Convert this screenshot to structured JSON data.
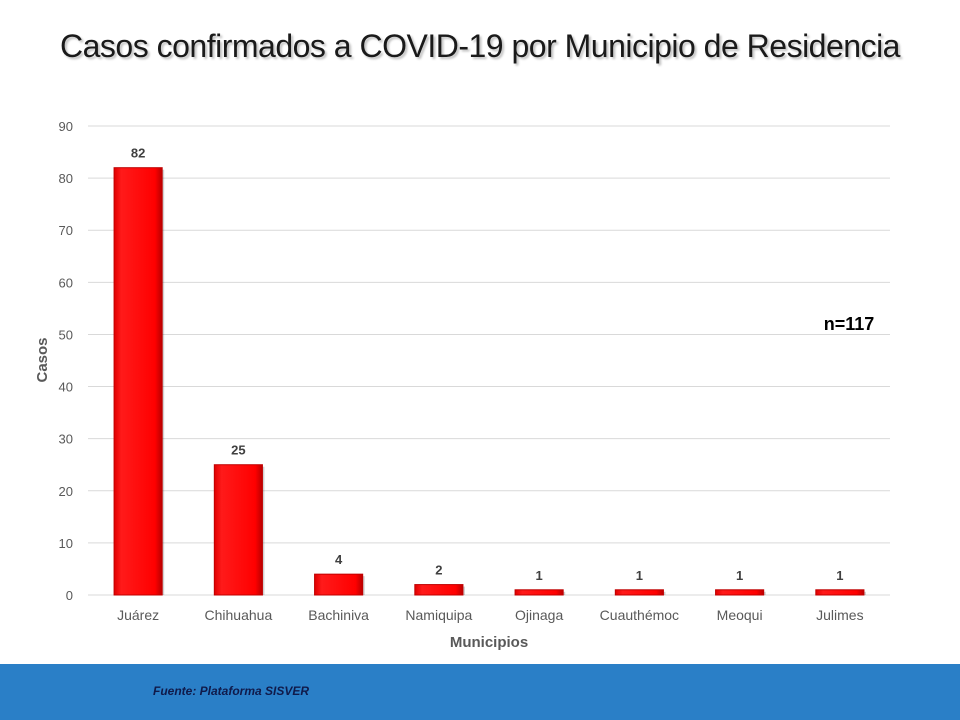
{
  "title": "Casos confirmados a COVID-19 por Municipio de Residencia",
  "source": "Fuente: Plataforma  SISVER",
  "colors": {
    "bar": "#ff0000",
    "bar_dark": "#c00000",
    "footer": "#2a7fc7",
    "grid": "#d9d9d9"
  },
  "chart_data": {
    "type": "bar",
    "categories": [
      "Juárez",
      "Chihuahua",
      "Bachiniva",
      "Namiquipa",
      "Ojinaga",
      "Cuauthémoc",
      "Meoqui",
      "Julimes"
    ],
    "values": [
      82,
      25,
      4,
      2,
      1,
      1,
      1,
      1
    ],
    "data_labels": [
      "82",
      "25",
      "4",
      "2",
      "1",
      "1",
      "1",
      "1"
    ],
    "xlabel": "Municipios",
    "ylabel": "Casos",
    "ylim": [
      0,
      90
    ],
    "yticks": [
      0,
      10,
      20,
      30,
      40,
      50,
      60,
      70,
      80,
      90
    ],
    "annotation": "n=117",
    "grid": true,
    "legend": "none"
  }
}
